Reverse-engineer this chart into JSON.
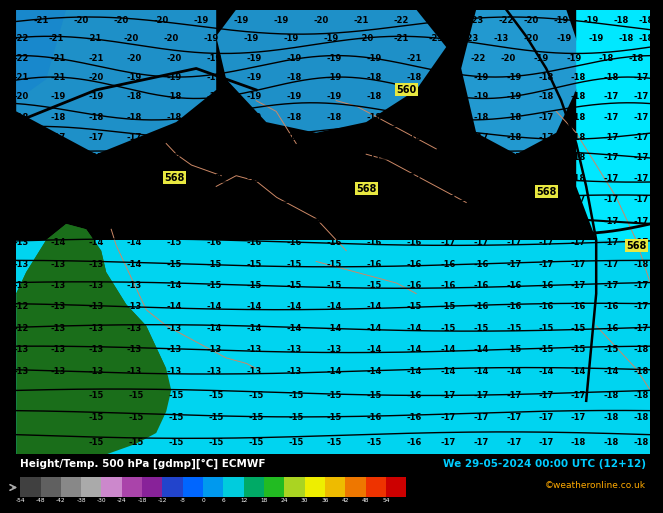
{
  "title_left": "Height/Temp. 500 hPa [gdmp][°C] ECMWF",
  "title_right": "We 29-05-2024 00:00 UTC (12+12)",
  "credit": "©weatheronline.co.uk",
  "bg_cyan": "#00d4f0",
  "bg_blue_dark": "#1e90c8",
  "bg_blue_mid": "#00b8e8",
  "land_dark_green": "#1a6e1a",
  "land_mid_green": "#207820",
  "text_color": "#000000",
  "contour_black": "#000000",
  "contour_line_color": "#000000",
  "label_568_bg": "#e8e840",
  "label_568_color": "#000000",
  "label_560_bg": "#e8e840",
  "label_560_color": "#000000",
  "bottom_bg": "#000000",
  "bottom_text_color": "#ffffff",
  "bottom_right_text_color": "#00ccff",
  "credit_color": "#ffaa00",
  "colorbar_colors": [
    "#404040",
    "#606060",
    "#888888",
    "#aaaaaa",
    "#cc88cc",
    "#aa44aa",
    "#882299",
    "#2244cc",
    "#0066ff",
    "#0099ee",
    "#00ccdd",
    "#00aa66",
    "#22bb22",
    "#aad422",
    "#eeee00",
    "#eebb00",
    "#ee7700",
    "#ee3300",
    "#cc0000"
  ],
  "colorbar_ticks": [
    "-54",
    "-48",
    "-42",
    "-38",
    "-30",
    "-24",
    "-18",
    "-12",
    "-8",
    "0",
    "6",
    "12",
    "18",
    "24",
    "30",
    "36",
    "42",
    "48",
    "54"
  ]
}
